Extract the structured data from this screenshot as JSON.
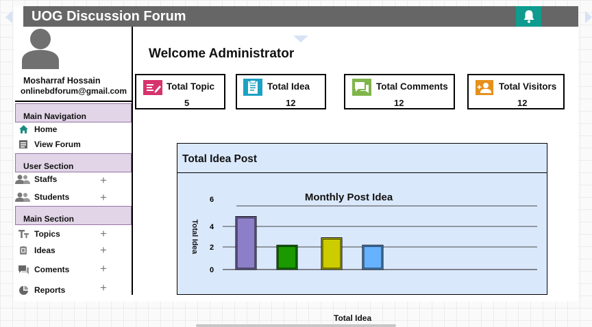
{
  "app": {
    "title": "UOG Discussion Forum"
  },
  "user": {
    "name": "Mosharraf Hossain",
    "email": "onlinebdforum@gmail.com"
  },
  "sidebar": {
    "sections": [
      {
        "label": "Main Navigation"
      },
      {
        "label": "User Section"
      },
      {
        "label": "Main Section"
      }
    ],
    "main_nav": [
      {
        "label": "Home",
        "icon": "home-icon"
      },
      {
        "label": "View Forum",
        "icon": "forum-list-icon"
      }
    ],
    "user_items": [
      {
        "label": "Staffs",
        "icon": "users-icon",
        "expand": "+"
      },
      {
        "label": "Students",
        "icon": "users-icon",
        "expand": "+"
      }
    ],
    "main_items": [
      {
        "label": "Topics",
        "icon": "text-icon",
        "expand": "+"
      },
      {
        "label": "Ideas",
        "icon": "idea-icon",
        "expand": "+"
      },
      {
        "label": "Coments",
        "icon": "comment-icon",
        "expand": "+"
      },
      {
        "label": "Reports",
        "icon": "report-icon",
        "expand": "+"
      }
    ]
  },
  "dashboard": {
    "welcome": "Welcome Administrator",
    "stats": [
      {
        "label": "Total Topic",
        "value": "5",
        "icon": "topic-icon",
        "color": "#d6336c"
      },
      {
        "label": "Total Idea",
        "value": "12",
        "icon": "idea-clipboard-icon",
        "color": "#1ba1c4"
      },
      {
        "label": "Total Comments",
        "value": "12",
        "icon": "comments-icon",
        "color": "#7fb54a"
      },
      {
        "label": "Total Visitors",
        "value": "12",
        "icon": "visitor-icon",
        "color": "#e6901c"
      }
    ],
    "panel_title": "Total Idea Post",
    "below_label": "Total Idea"
  },
  "colors": {
    "header_bg": "#666666",
    "bell_bg": "#0f9b8e",
    "section_bg": "#e1d5e7",
    "panel_bg": "#dae8fc"
  },
  "chart_data": {
    "type": "bar",
    "title": "Monthly Post Idea",
    "ylabel": "Total Idea",
    "xlabel": "",
    "y_ticks": [
      "6",
      "4",
      "2",
      "0"
    ],
    "ylim": [
      0,
      6
    ],
    "series": [
      {
        "name": "bar-1",
        "value": 5,
        "color": "#8c7fc7"
      },
      {
        "name": "bar-2",
        "value": 2.3,
        "color": "#1a9900"
      },
      {
        "name": "bar-3",
        "value": 3,
        "color": "#cccc00"
      },
      {
        "name": "bar-4",
        "value": 2.3,
        "color": "#66b2ff"
      }
    ]
  }
}
